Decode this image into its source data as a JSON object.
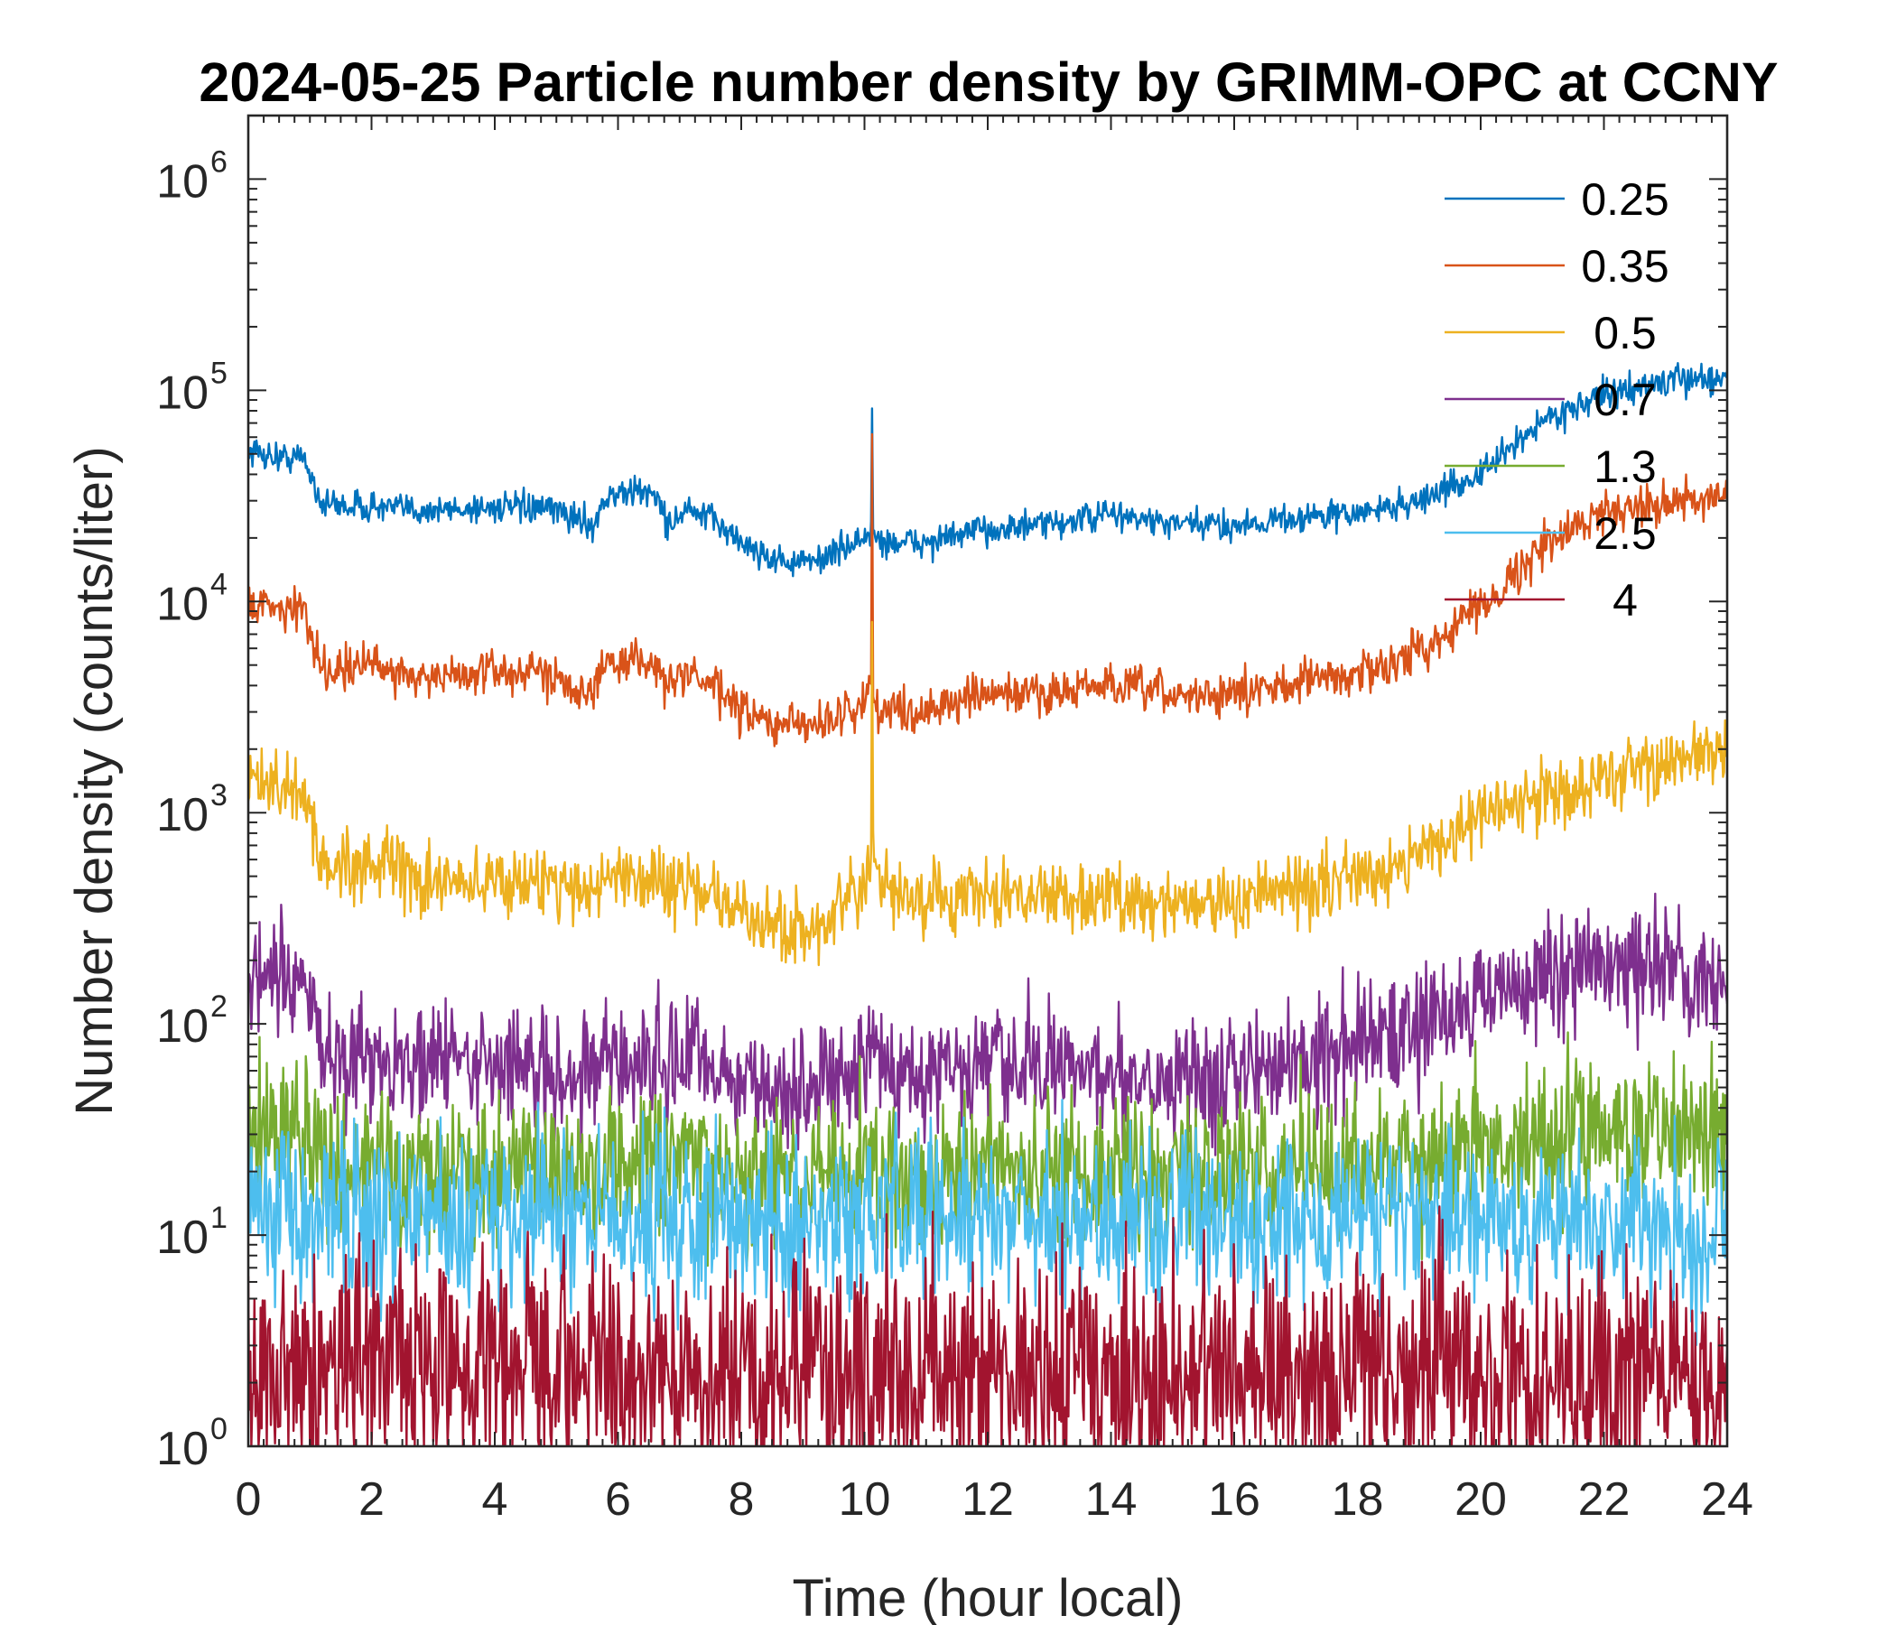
{
  "chart_data": {
    "type": "line",
    "title": "2024-05-25 Particle number density by GRIMM-OPC at CCNY",
    "xlabel": "Time (hour local)",
    "ylabel": "Number density (counts/liter)",
    "xlim": [
      0,
      24
    ],
    "ylim": [
      1,
      2000000
    ],
    "yscale": "log",
    "xticks": [
      0,
      2,
      4,
      6,
      8,
      10,
      12,
      14,
      16,
      18,
      20,
      22,
      24
    ],
    "xticklabels": [
      "0",
      "2",
      "4",
      "6",
      "8",
      "10",
      "12",
      "14",
      "16",
      "18",
      "20",
      "22",
      "24"
    ],
    "yticks": [
      1,
      10,
      100,
      1000,
      10000,
      100000,
      1000000
    ],
    "yticklabels": [
      {
        "base": "10",
        "exp": "0"
      },
      {
        "base": "10",
        "exp": "1"
      },
      {
        "base": "10",
        "exp": "2"
      },
      {
        "base": "10",
        "exp": "3"
      },
      {
        "base": "10",
        "exp": "4"
      },
      {
        "base": "10",
        "exp": "5"
      },
      {
        "base": "10",
        "exp": "6"
      }
    ],
    "grid": false,
    "legend": "top-right",
    "x": [
      0,
      0.5,
      0.9,
      1.2,
      2,
      3,
      4,
      5,
      5.6,
      5.8,
      6.2,
      6.6,
      6.8,
      7.1,
      7.6,
      8,
      8.5,
      9,
      9.5,
      10,
      10.1,
      10.3,
      11,
      12,
      13,
      14,
      15,
      16,
      17,
      18,
      19,
      20,
      21,
      22,
      23,
      24
    ],
    "series": [
      {
        "name": "0.25",
        "color": "#0072BD",
        "noise": 0.035,
        "spike": 82000,
        "values": [
          52000,
          48000,
          48000,
          29000,
          28000,
          27000,
          28000,
          27000,
          23000,
          31000,
          33000,
          33000,
          23000,
          27000,
          24000,
          19000,
          16000,
          15000,
          17000,
          20000,
          21000,
          19000,
          19000,
          22000,
          23000,
          26000,
          23000,
          23000,
          25000,
          26000,
          30000,
          40000,
          72000,
          95000,
          110000,
          116000
        ]
      },
      {
        "name": "0.35",
        "color": "#D95319",
        "noise": 0.05,
        "spike": 62000,
        "values": [
          10000,
          9500,
          9000,
          4800,
          5000,
          4300,
          4700,
          4500,
          3600,
          5000,
          5300,
          5200,
          3800,
          4700,
          3800,
          3000,
          2600,
          2600,
          2800,
          3300,
          4000,
          3000,
          3100,
          3600,
          3700,
          4000,
          3600,
          3600,
          4200,
          4500,
          5800,
          9500,
          18000,
          27000,
          30000,
          30000
        ]
      },
      {
        "name": "0.5",
        "color": "#EDB120",
        "noise": 0.08,
        "spike": 8000,
        "values": [
          1400,
          1300,
          1250,
          550,
          600,
          450,
          480,
          470,
          420,
          500,
          510,
          500,
          430,
          480,
          380,
          330,
          290,
          280,
          320,
          420,
          650,
          420,
          380,
          400,
          410,
          390,
          380,
          380,
          430,
          500,
          650,
          950,
          1200,
          1450,
          1750,
          1950
        ]
      },
      {
        "name": "0.7",
        "color": "#7E2F8E",
        "noise": 0.14,
        "spike": 0,
        "values": [
          160,
          150,
          150,
          75,
          70,
          65,
          65,
          60,
          60,
          70,
          65,
          65,
          60,
          75,
          60,
          55,
          48,
          45,
          55,
          70,
          80,
          60,
          60,
          60,
          62,
          60,
          58,
          58,
          70,
          80,
          100,
          135,
          160,
          190,
          170,
          165
        ]
      },
      {
        "name": "1.3",
        "color": "#77AC30",
        "noise": 0.18,
        "spike": 0,
        "values": [
          35,
          32,
          30,
          22,
          22,
          20,
          20,
          21,
          20,
          22,
          21,
          21,
          20,
          21,
          20,
          19,
          18,
          18,
          20,
          21,
          22,
          20,
          20,
          20,
          20,
          20,
          20,
          20,
          21,
          22,
          23,
          26,
          30,
          33,
          33,
          30
        ]
      },
      {
        "name": "2.5",
        "color": "#4DBEEE",
        "noise": 0.2,
        "spike": 0,
        "values": [
          15,
          14,
          14,
          13,
          13,
          12,
          12,
          13,
          12,
          13,
          12,
          12,
          12,
          12,
          12,
          11,
          11,
          11,
          12,
          12,
          13,
          12,
          12,
          12,
          12,
          12,
          12,
          12,
          12,
          12,
          12,
          12,
          12,
          11,
          11,
          10
        ]
      },
      {
        "name": "4",
        "color": "#A2142F",
        "noise": 0.28,
        "spike": 0,
        "values": [
          2.5,
          2.5,
          2.5,
          2.3,
          2.3,
          2.3,
          2.3,
          2.3,
          2.3,
          2.3,
          2.3,
          2.3,
          2.3,
          2.3,
          2.3,
          2.3,
          2.2,
          2.2,
          2.2,
          2.3,
          2.3,
          2.2,
          2.2,
          2.2,
          2.2,
          2.2,
          2.2,
          2.2,
          2.2,
          2.2,
          2.2,
          2.2,
          2.2,
          2.2,
          2.2,
          2.0
        ]
      }
    ]
  }
}
